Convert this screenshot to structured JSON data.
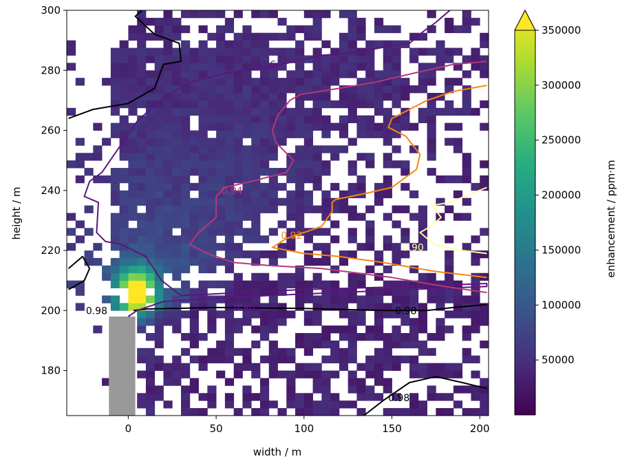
{
  "chart_data": {
    "type": "heatmap",
    "xlabel": "width / m",
    "ylabel": "height / m",
    "xlim": [
      -35,
      205
    ],
    "ylim": [
      165,
      300
    ],
    "x_ticks": [
      "0",
      "50",
      "100",
      "150",
      "200"
    ],
    "x_tick_values": [
      0,
      50,
      100,
      150,
      200
    ],
    "y_ticks": [
      "180",
      "200",
      "220",
      "240",
      "260",
      "280",
      "300"
    ],
    "y_tick_values": [
      180,
      200,
      220,
      240,
      260,
      280,
      300
    ],
    "colormap": "viridis",
    "colorbar": {
      "label": "enhancement / ppm·m",
      "range": [
        0,
        350000
      ],
      "extend": "max",
      "ticks": [
        "50000",
        "100000",
        "150000",
        "200000",
        "250000",
        "300000",
        "350000"
      ],
      "tick_values": [
        50000,
        100000,
        150000,
        200000,
        250000,
        300000,
        350000
      ]
    },
    "building": {
      "x": [
        -11,
        4
      ],
      "y": [
        165,
        198
      ],
      "color": "#999999"
    },
    "plume_peak": {
      "x": 5,
      "y": 206,
      "value": 350000
    },
    "contour_lines": [
      {
        "level": "0.98",
        "color": "#000000",
        "points": [
          [
            -34,
            264
          ],
          [
            -20,
            267
          ],
          [
            0,
            269
          ],
          [
            15,
            274
          ],
          [
            20,
            282
          ],
          [
            30,
            283
          ],
          [
            29,
            289
          ],
          [
            15,
            292
          ],
          [
            4,
            298
          ],
          [
            10,
            301
          ]
        ],
        "labels": []
      },
      {
        "level": "0.98",
        "color": "#000000",
        "points": [
          [
            3,
            200
          ],
          [
            10,
            200.5
          ],
          [
            50,
            201
          ],
          [
            100,
            200.7
          ],
          [
            146,
            200
          ],
          [
            170,
            200
          ],
          [
            185,
            201
          ],
          [
            204,
            202
          ]
        ],
        "labels": [
          {
            "text": "0.98",
            "x": -18,
            "y": 200
          },
          {
            "text": "0.98",
            "x": 158,
            "y": 200
          }
        ]
      },
      {
        "level": "0.98",
        "color": "#000000",
        "points": [
          [
            -34,
            207
          ],
          [
            -25,
            210
          ],
          [
            -22,
            214
          ],
          [
            -26,
            218
          ],
          [
            -34,
            214
          ]
        ],
        "labels": []
      },
      {
        "level": "0.98",
        "color": "#000000",
        "points": [
          [
            134,
            165
          ],
          [
            145,
            170
          ],
          [
            160,
            176
          ],
          [
            175,
            178
          ],
          [
            190,
            176
          ],
          [
            204,
            174
          ]
        ],
        "labels": [
          {
            "text": "0.98",
            "x": 154,
            "y": 171
          }
        ]
      },
      {
        "level": "0.96",
        "color": "#5a167e",
        "points": [
          [
            0,
            198
          ],
          [
            5,
            200
          ],
          [
            20,
            203
          ],
          [
            50,
            204
          ],
          [
            80,
            205
          ],
          [
            120,
            206
          ],
          [
            160,
            207
          ],
          [
            204,
            208
          ],
          [
            204,
            209
          ],
          [
            160,
            208
          ],
          [
            100,
            207
          ],
          [
            30,
            205
          ],
          [
            19,
            210
          ],
          [
            10,
            218
          ],
          [
            -4,
            222
          ],
          [
            -13,
            223
          ],
          [
            -18,
            226
          ],
          [
            -17,
            236
          ],
          [
            -25,
            238
          ],
          [
            -22,
            243
          ],
          [
            -15,
            246
          ],
          [
            5,
            263
          ],
          [
            20,
            271
          ],
          [
            35,
            276
          ],
          [
            55,
            279
          ],
          [
            65,
            280
          ],
          [
            80,
            281
          ],
          [
            95,
            283
          ],
          [
            110,
            285
          ],
          [
            130,
            286
          ],
          [
            148,
            288
          ],
          [
            160,
            289
          ],
          [
            168,
            293
          ],
          [
            175,
            296
          ],
          [
            183,
            300
          ]
        ],
        "labels": [
          {
            "text": "0.96",
            "x": 66,
            "y": 201
          },
          {
            "text": "0.96",
            "x": 78,
            "y": 282
          }
        ]
      },
      {
        "level": "0.94",
        "color": "#b73779",
        "points": [
          [
            204,
            206
          ],
          [
            180,
            208
          ],
          [
            150,
            211
          ],
          [
            110,
            214
          ],
          [
            80,
            215
          ],
          [
            60,
            216
          ],
          [
            45,
            219
          ],
          [
            35,
            222
          ],
          [
            40,
            226
          ],
          [
            50,
            231
          ],
          [
            50,
            238
          ],
          [
            55,
            241
          ],
          [
            70,
            243
          ],
          [
            90,
            246
          ],
          [
            94,
            250
          ],
          [
            84,
            256
          ],
          [
            82,
            260
          ],
          [
            85,
            265
          ],
          [
            92,
            270
          ],
          [
            98,
            272
          ],
          [
            120,
            274
          ],
          [
            140,
            276
          ],
          [
            162,
            279
          ],
          [
            185,
            282
          ],
          [
            204,
            283
          ]
        ],
        "labels": [
          {
            "text": "0.94",
            "x": 59,
            "y": 240
          }
        ]
      },
      {
        "level": "0.92",
        "color": "#f8850f",
        "points": [
          [
            204,
            211
          ],
          [
            175,
            213
          ],
          [
            145,
            216
          ],
          [
            120,
            218
          ],
          [
            100,
            219
          ],
          [
            82,
            221
          ],
          [
            90,
            224
          ],
          [
            110,
            228
          ],
          [
            116,
            233
          ],
          [
            116,
            236
          ],
          [
            118,
            237
          ],
          [
            135,
            239
          ],
          [
            150,
            241
          ],
          [
            164,
            247
          ],
          [
            166,
            252
          ],
          [
            158,
            258
          ],
          [
            148,
            261
          ],
          [
            150,
            264
          ],
          [
            160,
            267
          ],
          [
            170,
            270
          ],
          [
            185,
            273
          ],
          [
            204,
            275
          ]
        ],
        "labels": [
          {
            "text": "0.92",
            "x": 93,
            "y": 225
          }
        ]
      },
      {
        "level": "0.90",
        "color": "#fcffa4",
        "points": [
          [
            204,
            219
          ],
          [
            190,
            220
          ],
          [
            174,
            222
          ],
          [
            166,
            226
          ],
          [
            172,
            228
          ],
          [
            178,
            231
          ],
          [
            173,
            235
          ],
          [
            183,
            236
          ],
          [
            204,
            241
          ]
        ],
        "labels": [
          {
            "text": "0.90",
            "x": 162,
            "y": 221
          }
        ]
      }
    ]
  }
}
